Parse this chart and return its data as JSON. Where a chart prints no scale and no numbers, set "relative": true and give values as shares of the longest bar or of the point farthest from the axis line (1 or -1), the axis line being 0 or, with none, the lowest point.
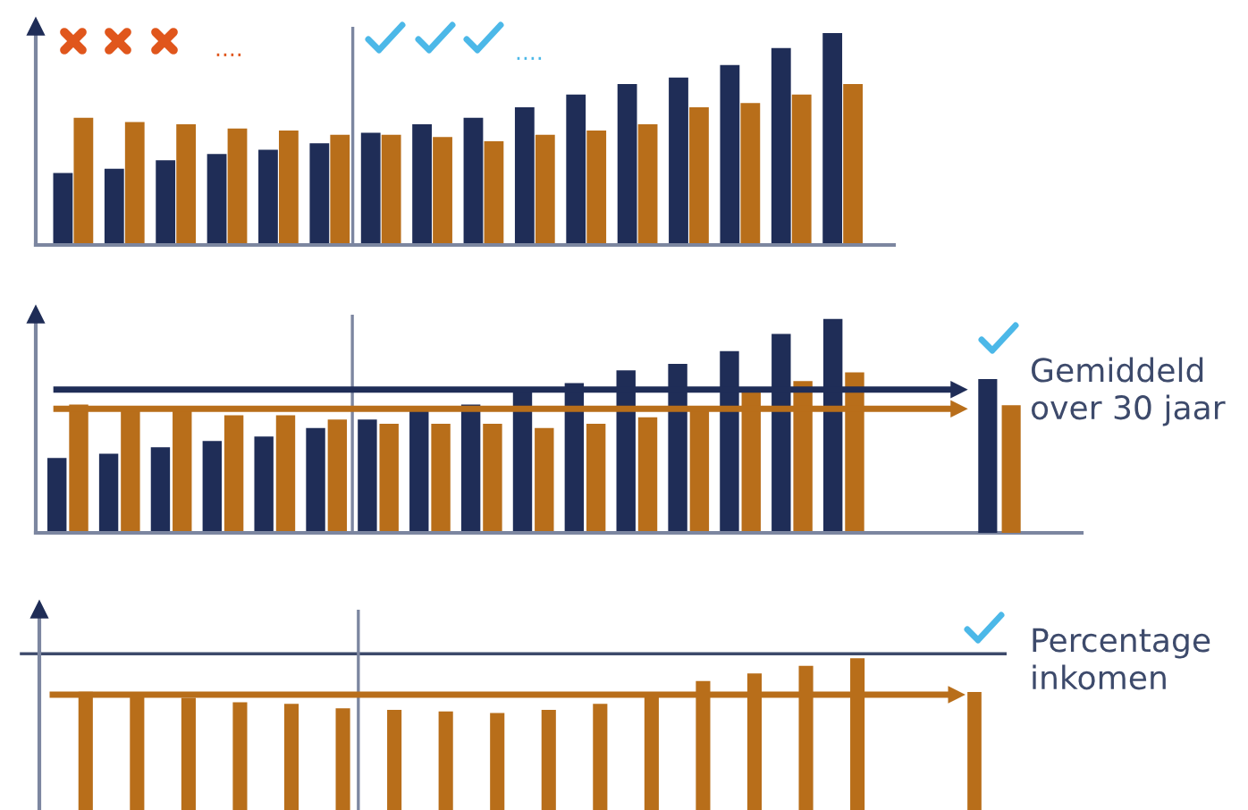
{
  "chart_data": [
    {
      "type": "bar",
      "relative": true,
      "categories": [
        null,
        null,
        null,
        null,
        null,
        null,
        null,
        null,
        null,
        null,
        null,
        null,
        null,
        null,
        null,
        null
      ],
      "series": [
        {
          "color": "#1f2d57",
          "values": [
            0.34,
            0.36,
            0.4,
            0.43,
            0.45,
            0.48,
            0.53,
            0.57,
            0.6,
            0.65,
            0.71,
            0.76,
            0.79,
            0.85,
            0.93,
            1.0
          ]
        },
        {
          "color": "#b86e1a",
          "values": [
            0.6,
            0.58,
            0.57,
            0.55,
            0.54,
            0.52,
            0.52,
            0.51,
            0.49,
            0.52,
            0.54,
            0.57,
            0.65,
            0.67,
            0.71,
            0.76
          ]
        }
      ],
      "annotations": [
        "....",
        "...."
      ]
    },
    {
      "type": "bar",
      "relative": true,
      "categories": [
        null,
        null,
        null,
        null,
        null,
        null,
        null,
        null,
        null,
        null,
        null,
        null,
        null,
        null,
        null,
        null
      ],
      "series": [
        {
          "color": "#1f2d57",
          "values": [
            0.35,
            0.37,
            0.4,
            0.43,
            0.45,
            0.49,
            0.53,
            0.57,
            0.6,
            0.67,
            0.7,
            0.76,
            0.79,
            0.85,
            0.93,
            1.0
          ]
        },
        {
          "color": "#b86e1a",
          "values": [
            0.6,
            0.58,
            0.57,
            0.55,
            0.55,
            0.53,
            0.51,
            0.51,
            0.51,
            0.49,
            0.51,
            0.54,
            0.59,
            0.66,
            0.71,
            0.75
          ]
        }
      ],
      "ref_lines": [
        {
          "axis": "y",
          "value": 0.67,
          "color": "#1f2d57"
        },
        {
          "axis": "y",
          "value": 0.58,
          "color": "#b86e1a"
        }
      ]
    },
    {
      "type": "bar",
      "relative": true,
      "categories": [
        null
      ],
      "series": [
        {
          "color": "#1f2d57",
          "values": [
            1.0
          ]
        },
        {
          "color": "#b86e1a",
          "values": [
            0.83
          ]
        }
      ],
      "annotations": [
        "Gemiddeld\nover 30 jaar"
      ]
    },
    {
      "type": "bar",
      "relative": true,
      "categories": [
        null,
        null,
        null,
        null,
        null,
        null,
        null,
        null,
        null,
        null,
        null,
        null,
        null,
        null,
        null,
        null
      ],
      "series": [
        {
          "color": "#b86e1a",
          "values": [
            0.78,
            0.75,
            0.74,
            0.71,
            0.7,
            0.67,
            0.66,
            0.65,
            0.64,
            0.66,
            0.7,
            0.75,
            0.85,
            0.9,
            0.95,
            1.0
          ]
        }
      ],
      "ref_lines": [
        {
          "axis": "y",
          "value": 1.03,
          "color": "#3d4a6b"
        },
        {
          "axis": "y",
          "value": 0.76,
          "color": "#b86e1a"
        }
      ]
    },
    {
      "type": "bar",
      "relative": true,
      "categories": [
        null
      ],
      "series": [
        {
          "color": "#b86e1a",
          "values": [
            1.0
          ]
        }
      ],
      "annotations": [
        "Percentage\ninkomen"
      ]
    }
  ]
}
